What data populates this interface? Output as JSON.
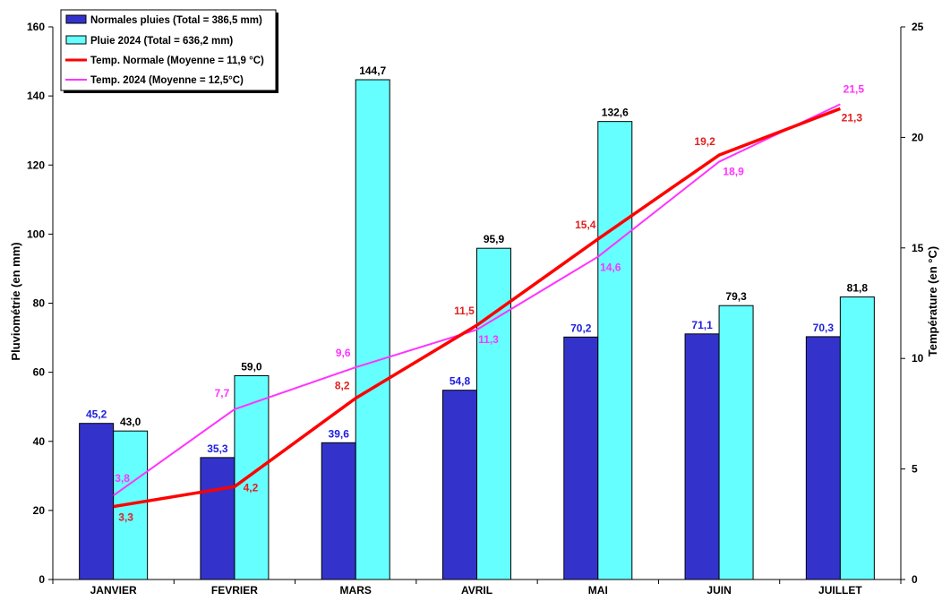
{
  "chart_data": {
    "type": "bar",
    "categories": [
      "JANVIER",
      "FEVRIER",
      "MARS",
      "AVRIL",
      "MAI",
      "JUIN",
      "JUILLET"
    ],
    "ylabel": "Pluviométrie (en mm)",
    "y2label": "Température (en °C)",
    "ylim": [
      0,
      160
    ],
    "y2lim": [
      0,
      25
    ],
    "yticks": [
      0,
      20,
      40,
      60,
      80,
      100,
      120,
      140,
      160
    ],
    "y2ticks": [
      0,
      5,
      10,
      15,
      20,
      25
    ],
    "grid": false,
    "legend_position": "top-left",
    "series": [
      {
        "name": "Normales pluies (Total = 386,5 mm)",
        "kind": "bar",
        "axis": "left",
        "color": "#3333CC",
        "label_color": "#2020DD",
        "values": [
          45.2,
          35.3,
          39.6,
          54.8,
          70.2,
          71.1,
          70.3
        ],
        "labels": [
          "45,2",
          "35,3",
          "39,6",
          "54,8",
          "70,2",
          "71,1",
          "70,3"
        ]
      },
      {
        "name": "Pluie 2024 (Total = 636,2 mm)",
        "kind": "bar",
        "axis": "left",
        "color": "#66FFFF",
        "label_color": "#000000",
        "values": [
          43.0,
          59.0,
          144.7,
          95.9,
          132.6,
          79.3,
          81.8
        ],
        "labels": [
          "43,0",
          "59,0",
          "144,7",
          "95,9",
          "132,6",
          "79,3",
          "81,8"
        ]
      },
      {
        "name": "Temp. Normale (Moyenne = 11,9 °C)",
        "kind": "line",
        "axis": "right",
        "color": "#FF0000",
        "label_color": "#E02020",
        "values": [
          3.3,
          4.2,
          8.2,
          11.5,
          15.4,
          19.2,
          21.3
        ],
        "labels": [
          "3,3",
          "4,2",
          "8,2",
          "11,5",
          "15,4",
          "19,2",
          "21,3"
        ]
      },
      {
        "name": "Temp. 2024 (Moyenne = 12,5°C)",
        "kind": "line",
        "axis": "right",
        "color": "#FF33FF",
        "label_color": "#FF33FF",
        "values": [
          3.8,
          7.7,
          9.6,
          11.3,
          14.6,
          18.9,
          21.5
        ],
        "labels": [
          "3,8",
          "7,7",
          "9,6",
          "11,3",
          "14,6",
          "18,9",
          "21,5"
        ]
      }
    ]
  }
}
